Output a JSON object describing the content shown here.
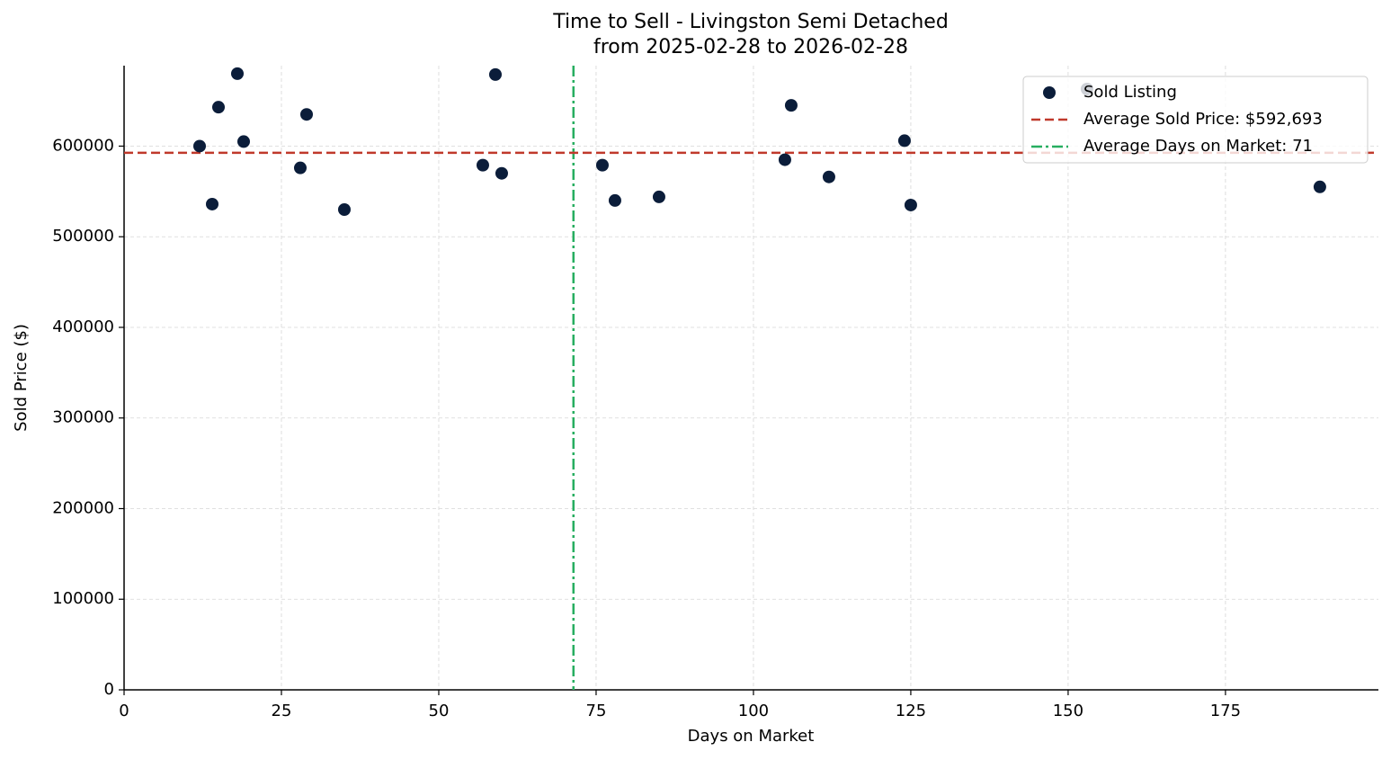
{
  "chart_data": {
    "type": "scatter",
    "title": "Time to Sell - Livingston Semi Detached",
    "subtitle": "from 2025-02-28 to 2026-02-28",
    "x_label": "Days on Market",
    "y_label": "Sold Price ($)",
    "x": [
      12,
      14,
      15,
      18,
      19,
      28,
      29,
      35,
      57,
      59,
      60,
      76,
      78,
      85,
      105,
      106,
      112,
      124,
      125,
      153,
      190
    ],
    "series": [
      {
        "name": "Sold Listing",
        "color": "#0b1d3a",
        "values": [
          600000,
          536000,
          643000,
          680000,
          605000,
          576000,
          635000,
          530000,
          579000,
          679000,
          570000,
          579000,
          540000,
          544000,
          585000,
          645000,
          566000,
          606000,
          535000,
          663000,
          555000
        ]
      }
    ],
    "hlines": [
      {
        "name": "Average Sold Price: $592,693",
        "value": 592693,
        "color": "#c0392b",
        "style": "dashed"
      }
    ],
    "vlines": [
      {
        "name": "Average Days on Market: 71",
        "value": 71.4,
        "color": "#27ae60",
        "style": "dashdot"
      }
    ],
    "xlim": [
      0,
      199.3
    ],
    "ylim": [
      0,
      688800
    ],
    "xticks": [
      0,
      25,
      50,
      75,
      100,
      125,
      150,
      175
    ],
    "yticks": [
      0,
      100000,
      200000,
      300000,
      400000,
      500000,
      600000
    ],
    "grid": true,
    "legend": "upper right"
  }
}
